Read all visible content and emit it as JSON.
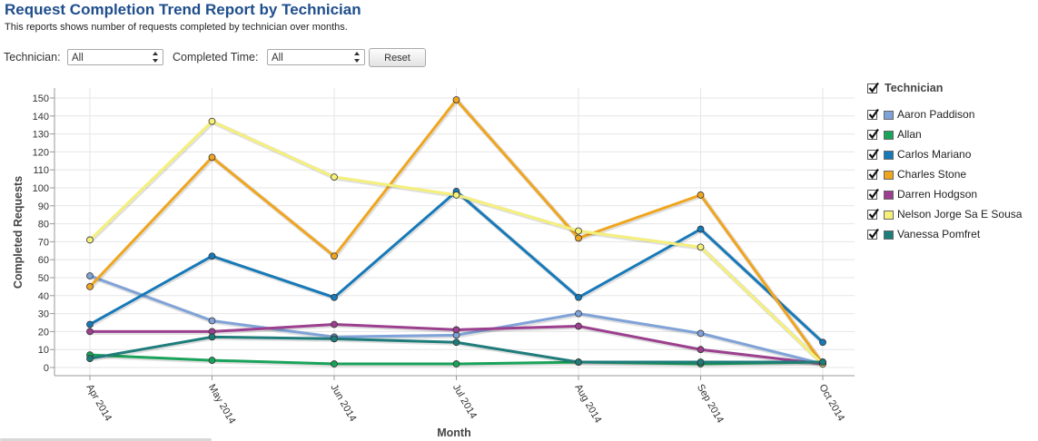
{
  "header": {
    "title": "Request Completion Trend Report by Technician",
    "subtitle": "This reports shows number of requests completed by technician over months."
  },
  "filters": {
    "technician_label": "Technician:",
    "technician_value": "All",
    "completed_time_label": "Completed Time:",
    "completed_time_value": "All",
    "reset_label": "Reset"
  },
  "legend": {
    "title": "Technician",
    "title_checked": true
  },
  "chart_data": {
    "type": "line",
    "xlabel": "Month",
    "ylabel": "Completed Requests",
    "categories": [
      "Apr 2014",
      "May 2014",
      "Jun 2014",
      "Jul 2014",
      "Aug 2014",
      "Sep 2014",
      "Oct 2014"
    ],
    "ylim": [
      0,
      150
    ],
    "yticks": [
      0,
      10,
      20,
      30,
      40,
      50,
      60,
      70,
      80,
      90,
      100,
      110,
      120,
      130,
      140,
      150
    ],
    "grid": true,
    "legend_position": "right",
    "series": [
      {
        "name": "Aaron Paddison",
        "color": "#7fa2d8",
        "values": [
          51,
          26,
          17,
          18,
          30,
          19,
          2
        ]
      },
      {
        "name": "Allan",
        "color": "#1aa35a",
        "values": [
          7,
          4,
          2,
          2,
          3,
          2,
          3
        ]
      },
      {
        "name": "Carlos Mariano",
        "color": "#1679b8",
        "values": [
          24,
          62,
          39,
          98,
          39,
          77,
          14
        ]
      },
      {
        "name": "Charles Stone",
        "color": "#f0a51e",
        "values": [
          45,
          117,
          62,
          149,
          72,
          96,
          2
        ]
      },
      {
        "name": "Darren Hodgson",
        "color": "#9b3f8e",
        "values": [
          20,
          20,
          24,
          21,
          23,
          10,
          2
        ]
      },
      {
        "name": "Nelson Jorge Sa E Sousa",
        "color": "#f5f07a",
        "values": [
          71,
          137,
          106,
          96,
          76,
          67,
          2
        ]
      },
      {
        "name": "Vanessa Pomfret",
        "color": "#1e7c7a",
        "values": [
          5,
          17,
          16,
          14,
          3,
          3,
          3
        ]
      }
    ]
  }
}
